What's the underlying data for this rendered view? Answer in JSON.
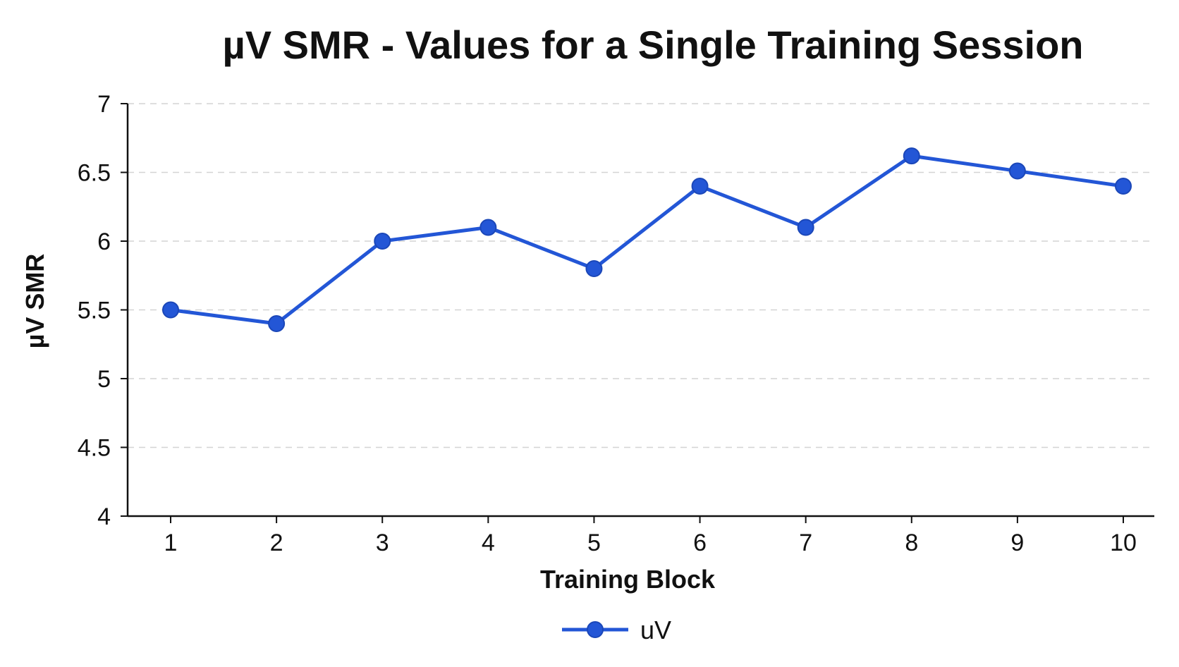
{
  "chart_data": {
    "type": "line",
    "title": "µV SMR - Values for a Single Training Session",
    "xlabel": "Training Block",
    "ylabel": "µV SMR",
    "x": [
      1,
      2,
      3,
      4,
      5,
      6,
      7,
      8,
      9,
      10
    ],
    "x_tick_labels": [
      "1",
      "2",
      "3",
      "4",
      "5",
      "6",
      "7",
      "8",
      "9",
      "10"
    ],
    "y_tick_labels": [
      "4",
      "4.5",
      "5",
      "5.5",
      "6",
      "6.5",
      "7"
    ],
    "y_ticks": [
      4,
      4.5,
      5,
      5.5,
      6,
      6.5,
      7
    ],
    "ylim": [
      4,
      7
    ],
    "grid": "horizontal-dashed",
    "legend_position": "bottom-center",
    "series": [
      {
        "name": "uV",
        "color": "#2356d6",
        "marker": "circle",
        "values": [
          5.5,
          5.4,
          6.0,
          6.1,
          5.8,
          6.4,
          6.1,
          6.62,
          6.51,
          6.4
        ]
      }
    ]
  }
}
